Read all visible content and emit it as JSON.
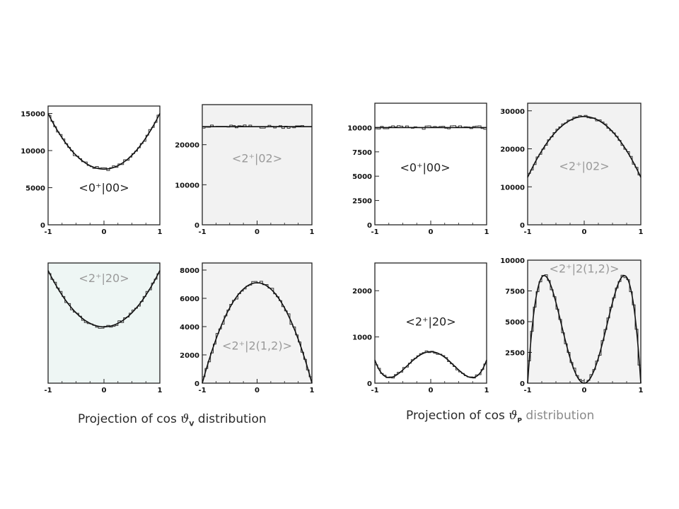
{
  "captions": {
    "left": {
      "prefix": "Projection of cos ",
      "symbol": "ϑ",
      "sub": "V",
      "suffix": " distribution"
    },
    "right": {
      "prefix": "Projection of cos ",
      "symbol": "ϑ",
      "sub": "P",
      "suffix": " distribution"
    }
  },
  "chart_data": [
    {
      "type": "line",
      "label": "<0⁺|00>",
      "label_color": "dark",
      "xlim": [
        -1,
        1
      ],
      "ylim": [
        0,
        16000
      ],
      "xticks": [
        -1,
        0,
        1
      ],
      "yticks": [
        0,
        5000,
        10000,
        15000
      ],
      "xtick_labels": [
        "-1",
        "0",
        "1"
      ],
      "ytick_labels": [
        "0",
        "5000",
        "10000",
        "15000"
      ],
      "bg": "#ffffff",
      "curve": {
        "shape": "quadratic",
        "a": 7500,
        "b": 0,
        "c": 7500
      },
      "hist_noise": 250
    },
    {
      "type": "line",
      "label": "<2⁺|02>",
      "label_color": "gray",
      "xlim": [
        -1,
        1
      ],
      "ylim": [
        0,
        30000
      ],
      "xticks": [
        -1,
        0,
        1
      ],
      "yticks": [
        0,
        10000,
        20000
      ],
      "xtick_labels": [
        "-1",
        "0",
        "1"
      ],
      "ytick_labels": [
        "0",
        "10000",
        "20000"
      ],
      "bg": "#f2f2f2",
      "curve": {
        "shape": "quadratic",
        "a": 24500,
        "b": 0,
        "c": 0
      },
      "hist_noise": 450
    },
    {
      "type": "line",
      "label": "<2⁺|20>",
      "label_color": "gray",
      "xlim": [
        -1,
        1
      ],
      "ylim": [
        0,
        16000
      ],
      "xticks": [
        -1,
        0,
        1
      ],
      "yticks": [],
      "xtick_labels": [
        "-1",
        "0",
        "1"
      ],
      "ytick_labels": [],
      "bg": "#eef6f4",
      "curve": {
        "shape": "quadratic",
        "a": 7500,
        "b": 0,
        "c": 7500
      },
      "hist_noise": 250
    },
    {
      "type": "line",
      "label": "<2⁺|2(1,2)>",
      "label_color": "gray",
      "xlim": [
        -1,
        1
      ],
      "ylim": [
        0,
        8500
      ],
      "xticks": [
        -1,
        0,
        1
      ],
      "yticks": [
        0,
        2000,
        4000,
        6000,
        8000
      ],
      "xtick_labels": [
        "-1",
        "0",
        "1"
      ],
      "ytick_labels": [
        "0",
        "2000",
        "4000",
        "6000",
        "8000"
      ],
      "bg": "#f3f3f3",
      "curve": {
        "shape": "quadratic",
        "a": 7100,
        "b": 0,
        "c": -7100
      },
      "hist_noise": 160
    },
    {
      "type": "line",
      "label": "<0⁺|00>",
      "label_color": "dark",
      "xlim": [
        -1,
        1
      ],
      "ylim": [
        0,
        12500
      ],
      "xticks": [
        -1,
        0,
        1
      ],
      "yticks": [
        0,
        2500,
        5000,
        7500,
        10000
      ],
      "xtick_labels": [
        "-1",
        "0",
        "1"
      ],
      "ytick_labels": [
        "0",
        "2500",
        "5000",
        "7500",
        "10000"
      ],
      "bg": "#ffffff",
      "curve": {
        "shape": "quadratic",
        "a": 10000,
        "b": 0,
        "c": 0
      },
      "hist_noise": 200
    },
    {
      "type": "line",
      "label": "<2⁺|02>",
      "label_color": "gray",
      "xlim": [
        -1,
        1
      ],
      "ylim": [
        0,
        32000
      ],
      "xticks": [
        -1,
        0,
        1
      ],
      "yticks": [
        0,
        10000,
        20000,
        30000
      ],
      "xtick_labels": [
        "-1",
        "0",
        "1"
      ],
      "ytick_labels": [
        "0",
        "10000",
        "20000",
        "30000"
      ],
      "bg": "#f2f2f2",
      "curve": {
        "shape": "quadratic",
        "a": 28500,
        "b": 0,
        "c": -16000
      },
      "hist_noise": 400
    },
    {
      "type": "line",
      "label": "<2⁺|20>",
      "label_color": "dark",
      "xlim": [
        -1,
        1
      ],
      "ylim": [
        0,
        2600
      ],
      "xticks": [
        -1,
        0,
        1
      ],
      "yticks": [
        0,
        1000,
        2000
      ],
      "xtick_labels": [
        "-1",
        "0",
        "1"
      ],
      "ytick_labels": [
        "0",
        "1000",
        "2000"
      ],
      "bg": "#ffffff",
      "curve": {
        "shape": "quartic",
        "a": 680,
        "b": -2040,
        "c": 1860
      },
      "hist_noise": 30
    },
    {
      "type": "line",
      "label": "<2⁺|2(1,2)>",
      "label_color": "gray",
      "xlim": [
        -1,
        1
      ],
      "ylim": [
        0,
        10000
      ],
      "xticks": [
        -1,
        0,
        1
      ],
      "yticks": [
        0,
        2500,
        5000,
        7500,
        10000
      ],
      "xtick_labels": [
        "-1",
        "0",
        "1"
      ],
      "ytick_labels": [
        "0",
        "2500",
        "5000",
        "7500",
        "10000"
      ],
      "bg": "#f3f3f3",
      "curve": {
        "shape": "quartic",
        "a": 0,
        "b": 35000,
        "c": -35000
      },
      "hist_noise": 180
    }
  ]
}
